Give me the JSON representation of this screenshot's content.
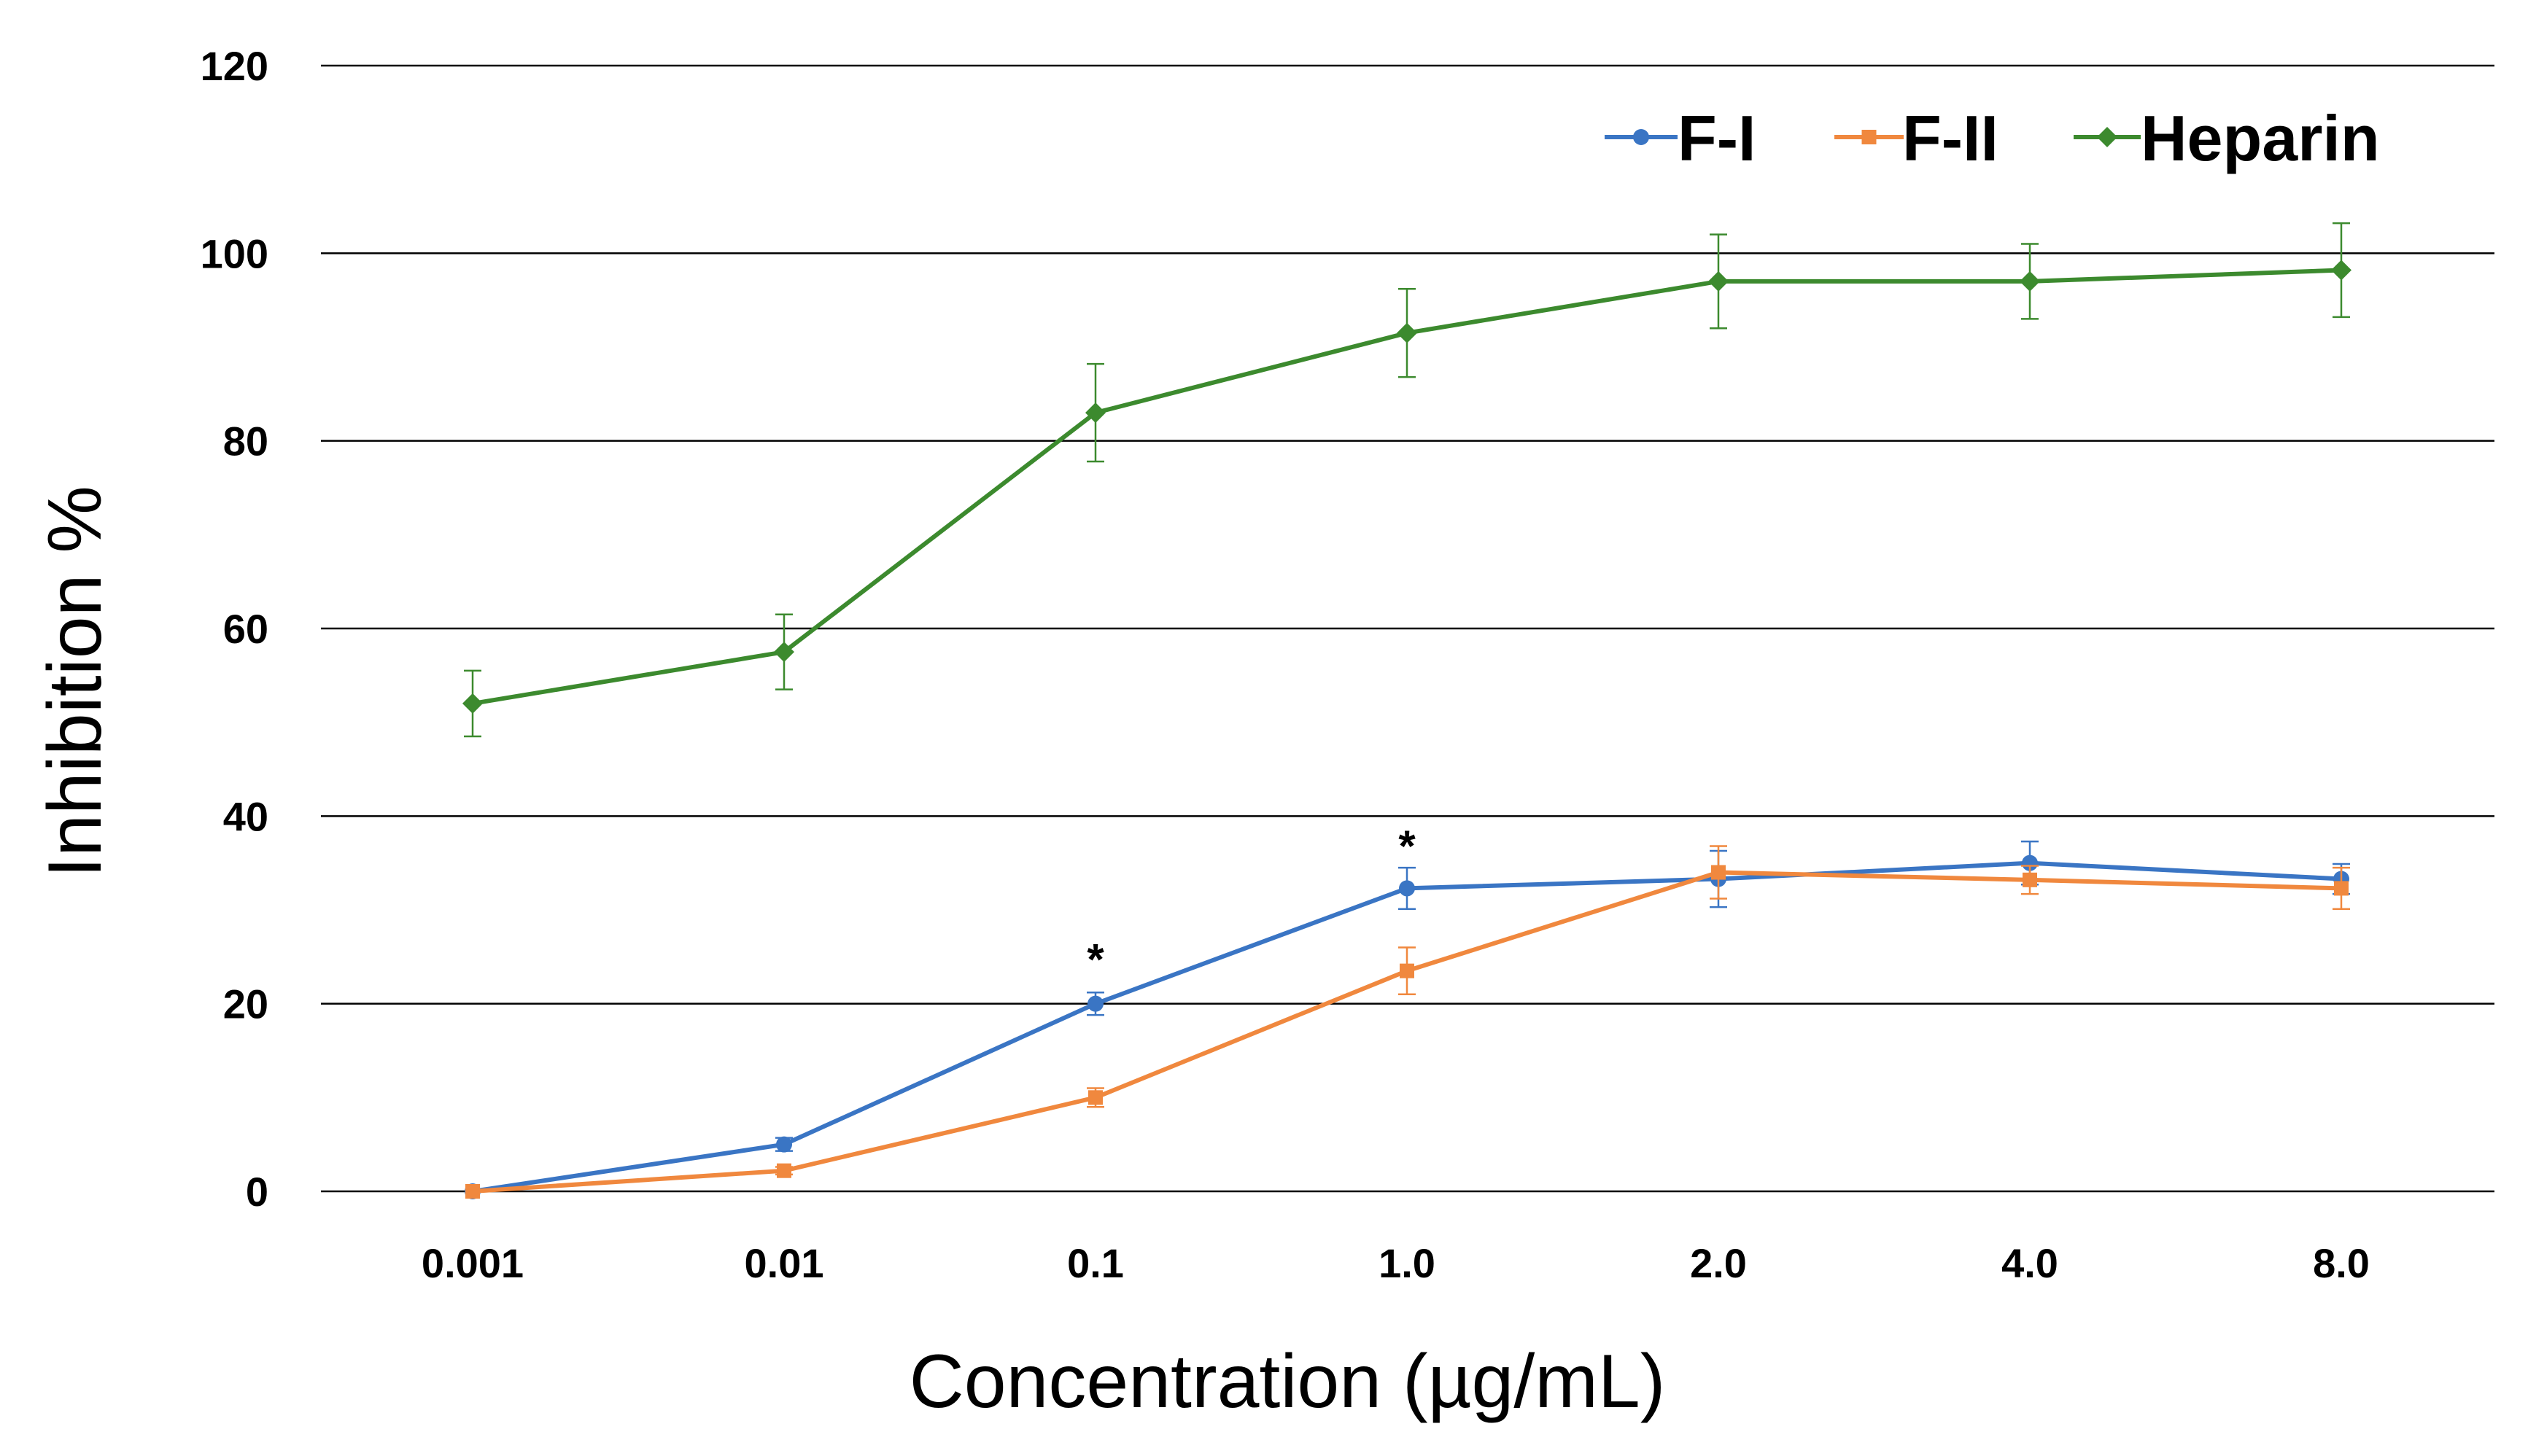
{
  "chart_data": {
    "type": "line",
    "title": "",
    "xlabel": "Concentration (µg/mL)",
    "ylabel": "Inhibition %",
    "ylim": [
      0,
      120
    ],
    "yticks": [
      0,
      20,
      40,
      60,
      80,
      100,
      120
    ],
    "grid": "horizontal",
    "legend_position": "top-right",
    "categories": [
      "0.001",
      "0.01",
      "0.1",
      "1.0",
      "2.0",
      "4.0",
      "8.0"
    ],
    "series": [
      {
        "name": "F-I",
        "color": "#3a75c4",
        "marker": "circle",
        "values": [
          0,
          5,
          20,
          32.3,
          33.3,
          35,
          33.3
        ],
        "errors": [
          0,
          0.7,
          1.2,
          2.2,
          3,
          2.3,
          1.6
        ]
      },
      {
        "name": "F-II",
        "color": "#f0883e",
        "marker": "square",
        "values": [
          0,
          2.2,
          10,
          23.5,
          34,
          33.2,
          32.3
        ],
        "errors": [
          0,
          0.4,
          1,
          2.5,
          2.8,
          1.5,
          2.2
        ]
      },
      {
        "name": "Heparin",
        "color": "#3c8a2e",
        "marker": "diamond",
        "values": [
          52,
          57.5,
          83,
          91.5,
          97,
          97,
          98.2
        ],
        "errors": [
          3.5,
          4,
          5.2,
          4.7,
          5,
          4,
          5
        ]
      }
    ],
    "annotations": [
      {
        "text": "*",
        "category": "0.1",
        "y": 25.3
      },
      {
        "text": "*",
        "category": "1.0",
        "y": 37.4
      }
    ]
  }
}
